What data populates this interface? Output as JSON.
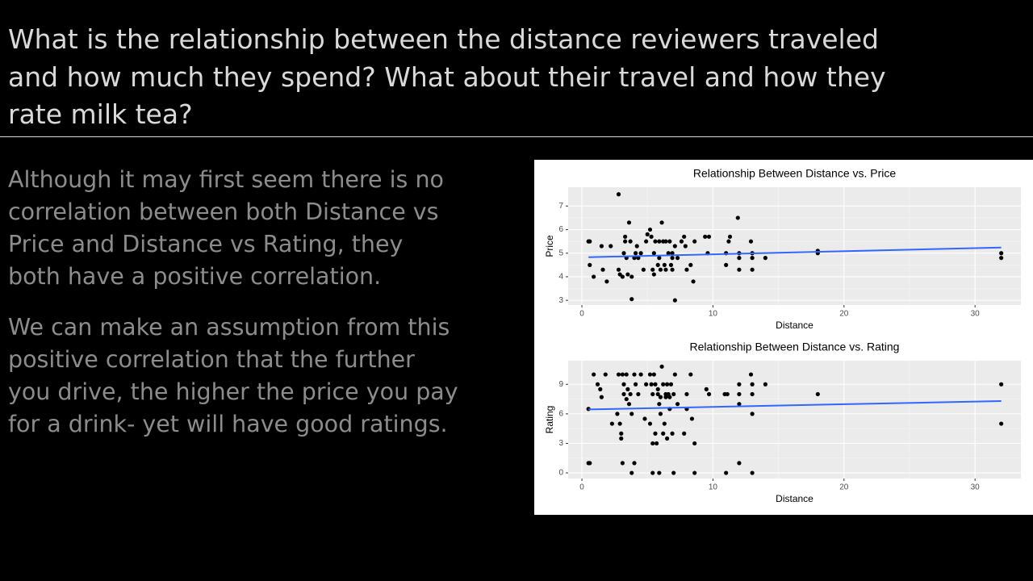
{
  "header": {
    "title_lines": [
      "What is the relationship between the distance reviewers traveled",
      "and how much they spend? What about their travel and how they",
      "rate milk tea?"
    ]
  },
  "body": {
    "paragraphs": [
      [
        "Although it may first seem there is no",
        "correlation between both Distance vs",
        "Price and Distance vs Rating, they",
        "both have a positive correlation."
      ],
      [
        "We can make an assumption from this",
        "positive correlation that the further",
        "you drive, the higher the price you pay",
        "for a drink- yet will have good ratings."
      ]
    ]
  },
  "chart_data": [
    {
      "type": "scatter",
      "title": "Relationship Between Distance vs. Price",
      "x_label": "Distance",
      "y_label": "Price",
      "xlim": [
        -1.05,
        33.5
      ],
      "ylim": [
        2.8,
        7.8
      ],
      "xticks": [
        0,
        10,
        20,
        30
      ],
      "yticks": [
        3,
        4,
        5,
        6,
        7
      ],
      "grid": true,
      "color": "#000000",
      "x": [
        0.5,
        0.6,
        0.6,
        0.9,
        1.5,
        1.6,
        1.9,
        2.2,
        2.8,
        2.8,
        2.9,
        3.1,
        3.2,
        3.3,
        3.3,
        3.4,
        3.5,
        3.6,
        3.7,
        3.8,
        3.8,
        4.0,
        4.1,
        4.2,
        4.3,
        4.5,
        4.7,
        4.9,
        5.0,
        5.2,
        5.3,
        5.4,
        5.5,
        5.5,
        5.6,
        5.8,
        5.9,
        5.9,
        6.0,
        6.1,
        6.2,
        6.3,
        6.4,
        6.4,
        6.6,
        6.7,
        6.8,
        6.9,
        6.9,
        6.9,
        7.1,
        7.1,
        7.3,
        7.6,
        7.8,
        7.9,
        8.0,
        8.3,
        8.5,
        8.6,
        9.4,
        9.6,
        9.7,
        11.0,
        11.0,
        11.2,
        11.3,
        11.9,
        12.0,
        12.0,
        12.0,
        12.9,
        13.0,
        13.0,
        13.0,
        14.0,
        18.0,
        18.0,
        32.0,
        32.0
      ],
      "values": [
        5.5,
        5.5,
        4.5,
        4.0,
        5.3,
        4.3,
        3.8,
        5.3,
        7.5,
        4.3,
        4.1,
        4.0,
        5.0,
        5.5,
        5.7,
        4.8,
        4.1,
        6.3,
        5.5,
        4.0,
        3.05,
        4.8,
        5.0,
        5.3,
        4.8,
        5.0,
        4.3,
        5.5,
        5.8,
        6.0,
        5.7,
        4.3,
        4.1,
        5.0,
        5.5,
        4.5,
        4.8,
        5.5,
        4.3,
        6.3,
        5.5,
        4.5,
        5.5,
        4.3,
        5.0,
        5.5,
        4.5,
        5.0,
        4.8,
        4.3,
        3.0,
        5.3,
        4.8,
        5.5,
        5.7,
        5.3,
        4.3,
        4.5,
        3.8,
        5.5,
        5.7,
        5.0,
        5.7,
        5.0,
        4.5,
        5.5,
        5.7,
        6.5,
        5.0,
        4.8,
        4.3,
        5.5,
        5.0,
        4.8,
        4.3,
        4.8,
        5.1,
        5.0,
        5.0,
        4.8
      ],
      "trend": {
        "color": "#3366ff",
        "x": [
          0.5,
          32
        ],
        "values": [
          4.83,
          5.24
        ]
      }
    },
    {
      "type": "scatter",
      "title": "Relationship Between Distance vs. Rating",
      "x_label": "Distance",
      "y_label": "Rating",
      "xlim": [
        -1.05,
        33.5
      ],
      "ylim": [
        -0.57,
        11.4
      ],
      "xticks": [
        0,
        10,
        20,
        30
      ],
      "yticks": [
        0,
        3,
        6,
        9
      ],
      "grid": true,
      "color": "#000000",
      "x": [
        0.5,
        0.5,
        0.6,
        0.9,
        1.2,
        1.4,
        1.5,
        1.8,
        2.3,
        2.7,
        2.8,
        2.9,
        3.0,
        3.0,
        3.1,
        3.1,
        3.2,
        3.2,
        3.4,
        3.4,
        3.5,
        3.6,
        3.7,
        3.8,
        3.8,
        4.0,
        4.0,
        4.1,
        4.3,
        4.5,
        4.8,
        4.9,
        5.2,
        5.2,
        5.3,
        5.4,
        5.4,
        5.4,
        5.5,
        5.6,
        5.6,
        5.7,
        5.8,
        5.8,
        5.9,
        5.9,
        6.0,
        6.0,
        6.1,
        6.2,
        6.2,
        6.3,
        6.4,
        6.4,
        6.5,
        6.5,
        6.6,
        6.7,
        6.7,
        6.8,
        6.9,
        7.0,
        7.0,
        7.1,
        7.3,
        7.8,
        8.0,
        8.0,
        8.3,
        8.4,
        8.6,
        8.6,
        9.5,
        9.7,
        10.9,
        11.0,
        11.1,
        12.0,
        12.0,
        12.0,
        12.0,
        12.9,
        13.0,
        13.0,
        13.0,
        13.0,
        14.0,
        18.0,
        32.0,
        32.0
      ],
      "values": [
        6.5,
        1,
        1,
        10,
        9,
        8.5,
        7.7,
        10,
        5,
        6,
        10,
        5,
        4,
        3.5,
        10,
        1,
        8,
        9,
        7.5,
        10,
        8.5,
        7,
        8,
        6,
        0,
        1,
        10,
        9,
        8,
        10,
        5.5,
        9,
        10,
        5,
        9,
        3,
        0,
        8,
        10,
        4,
        9,
        3,
        8,
        8.5,
        7,
        0,
        7.7,
        6,
        10.8,
        9,
        4,
        5,
        7.7,
        8,
        9,
        3.5,
        8,
        6.5,
        7.7,
        9,
        4,
        0,
        8,
        10,
        7,
        4,
        6.5,
        8,
        10,
        5.5,
        3,
        0,
        8.5,
        8,
        8,
        0,
        8,
        1,
        9,
        8,
        7,
        10,
        9,
        8,
        6,
        0,
        9,
        8,
        9,
        5
      ],
      "trend": {
        "color": "#3366ff",
        "x": [
          0.5,
          32
        ],
        "values": [
          6.45,
          7.3
        ]
      }
    }
  ]
}
